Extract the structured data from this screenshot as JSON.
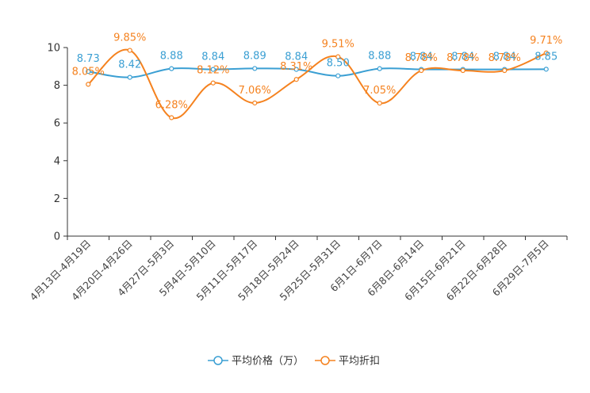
{
  "chart_data": {
    "type": "line",
    "categories": [
      "4月13日-4月19日",
      "4月20日-4月26日",
      "4月27日-5月3日",
      "5月4日-5月10日",
      "5月11日-5月17日",
      "5月18日-5月24日",
      "5月25日-5月31日",
      "6月1日-6月7日",
      "6月8日-6月14日",
      "6月15日-6月21日",
      "6月22日-6月28日",
      "6月29日-7月5日"
    ],
    "series": [
      {
        "name": "平均价格（万）",
        "color": "#3a9fd3",
        "values": [
          8.73,
          8.42,
          8.88,
          8.84,
          8.89,
          8.84,
          8.5,
          8.88,
          8.84,
          8.84,
          8.84,
          8.85
        ],
        "labels": [
          "8.73",
          "8.42",
          "8.88",
          "8.84",
          "8.89",
          "8.84",
          "8.50",
          "8.88",
          "8.84",
          "8.84",
          "8.84",
          "8.85"
        ]
      },
      {
        "name": "平均折扣",
        "color": "#f5821f",
        "values": [
          8.05,
          9.85,
          6.28,
          8.12,
          7.06,
          8.31,
          9.51,
          7.05,
          8.78,
          8.78,
          8.78,
          9.71
        ],
        "labels": [
          "8.05%",
          "9.85%",
          "6.28%",
          "8.12%",
          "7.06%",
          "8.31%",
          "9.51%",
          "7.05%",
          "8.78%",
          "8.78%",
          "8.78%",
          "9.71%"
        ]
      }
    ],
    "yticks": [
      "0",
      "2",
      "4",
      "6",
      "8",
      "10"
    ],
    "ylim": [
      0,
      10
    ],
    "title": "",
    "xlabel": "",
    "ylabel": "",
    "legend": "bottom-center",
    "grid": false
  }
}
